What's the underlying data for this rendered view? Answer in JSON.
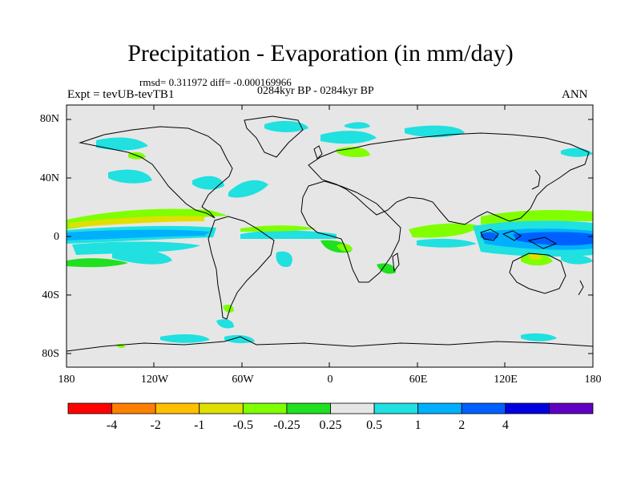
{
  "map": {
    "title": "Precipitation - Evaporation (in mm/day)",
    "stats": "rmsd= 0.311972 diff= -0.000169966",
    "period": "0284kyr BP - 0284kyr BP",
    "experiment": "Expt = tevUB-tevTB1",
    "season": "ANN",
    "projection": "cylindrical-equidistant",
    "lon_range": [
      -180,
      180
    ],
    "lat_range": [
      -90,
      90
    ],
    "background_color": "#e6e6e6",
    "coastline_color": "#000000",
    "lat_labels": [
      "80N",
      "40N",
      "0",
      "40S",
      "80S"
    ],
    "lon_labels": [
      "180",
      "120W",
      "60W",
      "0",
      "60E",
      "120E",
      "180"
    ]
  },
  "colorbar": {
    "colors": [
      "#ff0000",
      "#ff8000",
      "#ffc000",
      "#e0e000",
      "#80ff00",
      "#20e020",
      "#e6e6e6",
      "#20e0e0",
      "#00b0ff",
      "#0060ff",
      "#0000e0",
      "#6000c0"
    ],
    "labels": [
      "-4",
      "-2",
      "-1",
      "-0.5",
      "-0.25",
      "0.25",
      "0.5",
      "1",
      "2",
      "4"
    ]
  }
}
